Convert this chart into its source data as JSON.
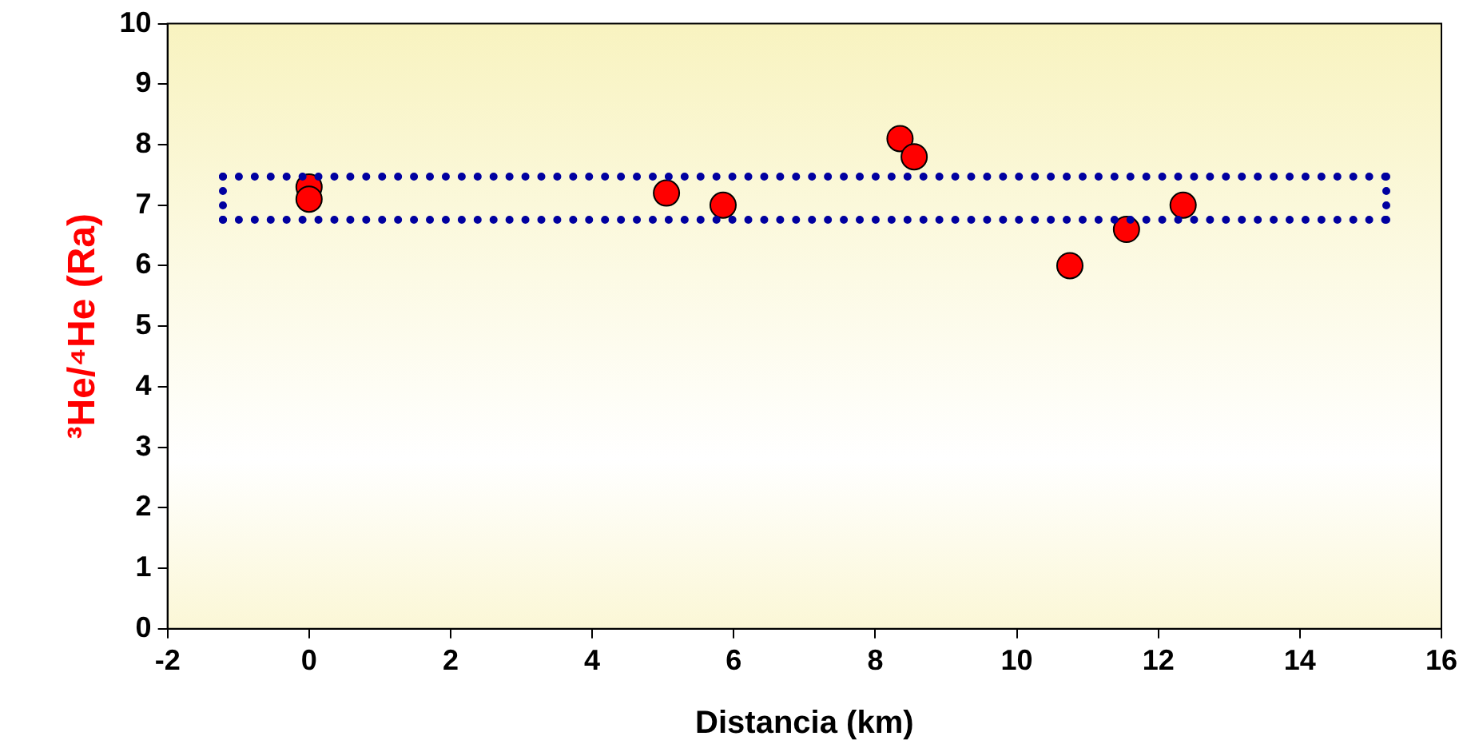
{
  "chart_data": {
    "type": "scatter",
    "xlabel": "Distancia (km)",
    "ylabel": "³He/⁴He (Ra)",
    "series": [
      {
        "color": "#ff0000",
        "x": [
          0,
          0,
          5.05,
          5.85,
          8.35,
          8.55,
          10.75,
          11.55,
          12.35
        ],
        "values": [
          7.3,
          7.1,
          7.2,
          7.0,
          8.1,
          7.8,
          6.0,
          6.6,
          7.0
        ]
      }
    ],
    "xlim": [
      -2,
      16
    ],
    "xticks": [
      -2,
      0,
      2,
      4,
      6,
      8,
      10,
      12,
      14,
      16
    ],
    "ylim": [
      0,
      10
    ],
    "yticks": [
      0,
      1,
      2,
      3,
      4,
      5,
      6,
      7,
      8,
      9,
      10
    ],
    "grid": false,
    "legend": false,
    "marker": "circle"
  }
}
